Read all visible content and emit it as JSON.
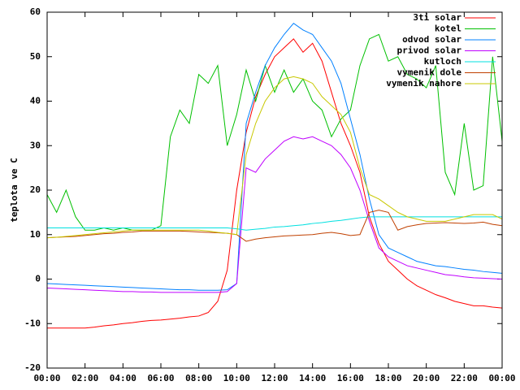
{
  "chart_data": {
    "type": "line",
    "y_label": "teplota ve C",
    "x": [
      0,
      0.5,
      1,
      1.5,
      2,
      2.5,
      3,
      3.5,
      4,
      4.5,
      5,
      5.5,
      6,
      6.5,
      7,
      7.5,
      8,
      8.5,
      9,
      9.5,
      10,
      10.5,
      11,
      11.5,
      12,
      12.5,
      13,
      13.5,
      14,
      14.5,
      15,
      15.5,
      16,
      16.5,
      17,
      17.5,
      18,
      18.5,
      19,
      19.5,
      20,
      20.5,
      21,
      21.5,
      22,
      22.5,
      23,
      23.5,
      24
    ],
    "xlim": [
      0,
      24
    ],
    "xticks": [
      {
        "value": 0,
        "label": "00:00"
      },
      {
        "value": 2,
        "label": "02:00"
      },
      {
        "value": 4,
        "label": "04:00"
      },
      {
        "value": 6,
        "label": "06:00"
      },
      {
        "value": 8,
        "label": "08:00"
      },
      {
        "value": 10,
        "label": "10:00"
      },
      {
        "value": 12,
        "label": "12:00"
      },
      {
        "value": 14,
        "label": "14:00"
      },
      {
        "value": 16,
        "label": "16:00"
      },
      {
        "value": 18,
        "label": "18:00"
      },
      {
        "value": 20,
        "label": "20:00"
      },
      {
        "value": 22,
        "label": "22:00"
      },
      {
        "value": 24,
        "label": "00:00"
      }
    ],
    "ylim": [
      -20,
      60
    ],
    "yticks": [
      -20,
      -10,
      0,
      10,
      20,
      30,
      40,
      50,
      60
    ],
    "grid": false,
    "legend": "top-right",
    "series": [
      {
        "name": "3ti solar",
        "color": "#ff0000",
        "values": [
          -11,
          -11,
          -11,
          -11,
          -11,
          -10.8,
          -10.5,
          -10.3,
          -10,
          -9.8,
          -9.5,
          -9.3,
          -9.2,
          -9,
          -8.8,
          -8.5,
          -8.3,
          -7.5,
          -5,
          2,
          20,
          33,
          41,
          46,
          50,
          52,
          54,
          51,
          53,
          49,
          42,
          35,
          30,
          24,
          14,
          8,
          4,
          2,
          0,
          -1.5,
          -2.5,
          -3.5,
          -4.2,
          -5,
          -5.5,
          -6,
          -6,
          -6.3,
          -6.5
        ]
      },
      {
        "name": "kotel",
        "color": "#00c000",
        "values": [
          19,
          15,
          20,
          14,
          11,
          11,
          11.5,
          11,
          11.5,
          11,
          11,
          11,
          12,
          32,
          38,
          35,
          46,
          44,
          48,
          30,
          37,
          47,
          40,
          48,
          42,
          47,
          42,
          45,
          40,
          38,
          32,
          36,
          38,
          48,
          54,
          55,
          49,
          50,
          46,
          45,
          43,
          48,
          24,
          19,
          35,
          20,
          21,
          50,
          31
        ]
      },
      {
        "name": "odvod solar",
        "color": "#0080ff",
        "values": [
          -1,
          -1.1,
          -1.2,
          -1.3,
          -1.4,
          -1.5,
          -1.6,
          -1.7,
          -1.8,
          -1.9,
          -2,
          -2.1,
          -2.2,
          -2.3,
          -2.4,
          -2.4,
          -2.5,
          -2.5,
          -2.5,
          -2.4,
          -1,
          35,
          42,
          48,
          52,
          55,
          57.5,
          56,
          55,
          52,
          49,
          44,
          36,
          28,
          18,
          10,
          7,
          6,
          5,
          4,
          3.5,
          3,
          2.8,
          2.5,
          2.2,
          2,
          1.7,
          1.5,
          1.3
        ]
      },
      {
        "name": "privod solar",
        "color": "#c000ff",
        "values": [
          -2,
          -2.1,
          -2.2,
          -2.3,
          -2.4,
          -2.5,
          -2.6,
          -2.7,
          -2.8,
          -2.8,
          -2.9,
          -2.9,
          -3,
          -3,
          -3,
          -3,
          -3,
          -3,
          -3,
          -2.8,
          -1,
          25,
          24,
          27,
          29,
          31,
          32,
          31.5,
          32,
          31,
          30,
          28,
          25,
          20,
          13,
          7,
          5,
          4,
          3,
          2.5,
          2,
          1.5,
          1,
          0.8,
          0.5,
          0.3,
          0.2,
          0.1,
          0
        ]
      },
      {
        "name": "kutloch",
        "color": "#00e0e0",
        "values": [
          11.5,
          11.5,
          11.5,
          11.5,
          11.5,
          11.5,
          11.5,
          11.5,
          11.5,
          11.5,
          11.5,
          11.5,
          11.5,
          11.5,
          11.5,
          11.5,
          11.5,
          11.5,
          11.5,
          11.5,
          11.3,
          11,
          11.2,
          11.4,
          11.7,
          11.8,
          12,
          12.2,
          12.5,
          12.7,
          13,
          13.2,
          13.5,
          13.8,
          14,
          14,
          14,
          14,
          14,
          14,
          14,
          14,
          14,
          14,
          14,
          14,
          14,
          14,
          14
        ]
      },
      {
        "name": "vymenik dole",
        "color": "#c04000",
        "values": [
          9.3,
          9.4,
          9.5,
          9.6,
          9.8,
          10,
          10.2,
          10.3,
          10.5,
          10.6,
          10.8,
          10.8,
          10.8,
          10.8,
          10.8,
          10.7,
          10.6,
          10.5,
          10.4,
          10.3,
          10,
          8.5,
          9,
          9.3,
          9.5,
          9.7,
          9.8,
          9.9,
          10,
          10.3,
          10.5,
          10.2,
          9.8,
          10,
          15,
          15.5,
          15,
          11,
          11.8,
          12.2,
          12.5,
          12.6,
          12.7,
          12.6,
          12.5,
          12.6,
          12.8,
          12.3,
          12
        ]
      },
      {
        "name": "vymenik nahore",
        "color": "#c8c800",
        "values": [
          9.3,
          9.4,
          9.6,
          9.8,
          10,
          10.2,
          10.4,
          10.6,
          10.8,
          11,
          11,
          11,
          11,
          11,
          11,
          11,
          11,
          10.8,
          10.5,
          10.3,
          10,
          28,
          35,
          40,
          43,
          45,
          45.5,
          45,
          44,
          41,
          39,
          37,
          33,
          25,
          19,
          18,
          16.5,
          15,
          14,
          13.5,
          13,
          13,
          13,
          13.5,
          14,
          14.5,
          14.5,
          14.5,
          13.5
        ]
      }
    ]
  }
}
